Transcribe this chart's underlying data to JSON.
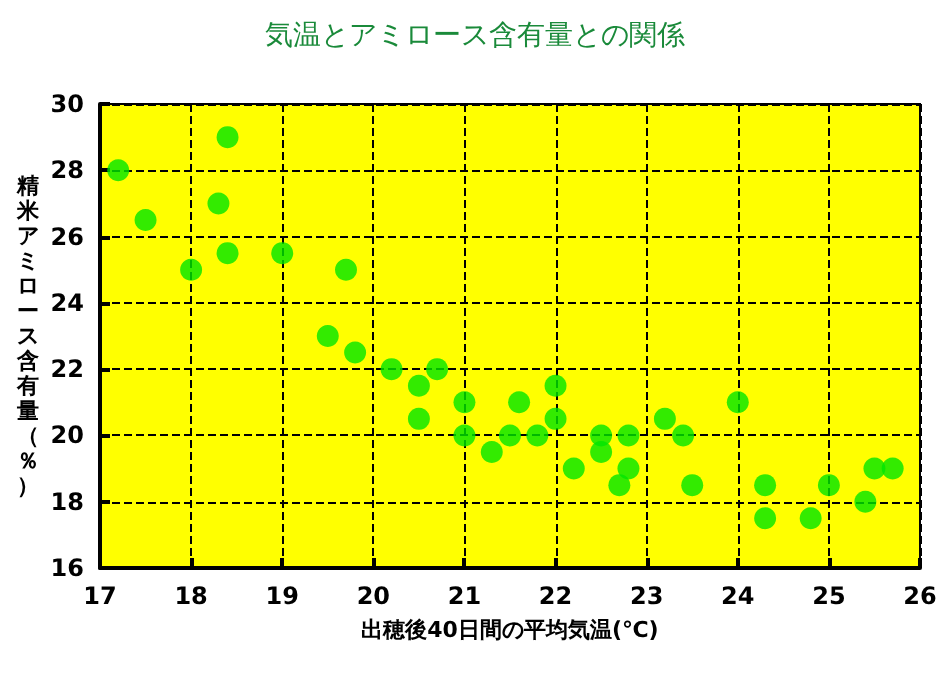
{
  "chart_data": {
    "type": "scatter",
    "title": "気温とアミロース含有量との関係",
    "xlabel": "出穂後40日間の平均気温(℃)",
    "ylabel": "精米アミロース含有量（％）",
    "x": [
      17.2,
      17.5,
      18,
      18.3,
      18.4,
      18.4,
      19,
      19.5,
      19.7,
      19.8,
      20.2,
      20.5,
      20.5,
      20.7,
      21,
      21,
      21.3,
      21.5,
      21.6,
      21.8,
      22,
      22,
      22.2,
      22.5,
      22.5,
      22.7,
      22.8,
      22.8,
      23.2,
      23.4,
      23.5,
      24,
      24.3,
      24.3,
      24.8,
      25,
      25.4,
      25.5,
      25.7
    ],
    "values": [
      28,
      26.5,
      25,
      27,
      29,
      25.5,
      25.5,
      23,
      25,
      22.5,
      22,
      21.5,
      20.5,
      22,
      21,
      20,
      19.5,
      20,
      21,
      20,
      21.5,
      20.5,
      19,
      20,
      19.5,
      18.5,
      20,
      19,
      20.5,
      20,
      18.5,
      21,
      18.5,
      17.5,
      17.5,
      18.5,
      18,
      19,
      19
    ],
    "color": "#00e600",
    "marker": "circle",
    "xlim": [
      17,
      26
    ],
    "xticks": [
      17,
      18,
      19,
      20,
      21,
      22,
      23,
      24,
      25,
      26
    ],
    "ylim": [
      16,
      30
    ],
    "yticks": [
      16,
      18,
      20,
      22,
      24,
      26,
      28,
      30
    ],
    "grid": true
  }
}
